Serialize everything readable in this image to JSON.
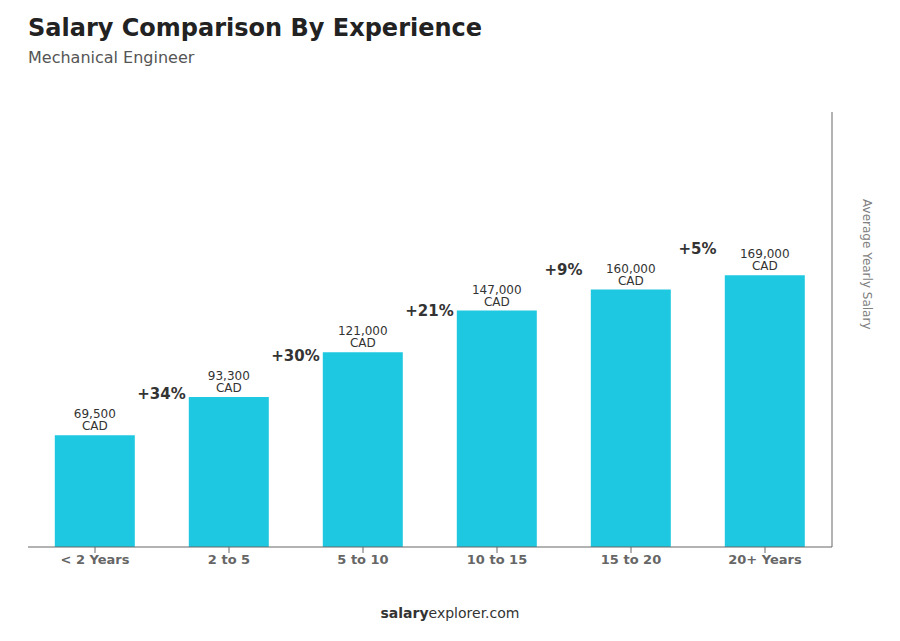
{
  "chart_data": {
    "type": "bar",
    "title": "Salary Comparison By Experience",
    "subtitle": "Mechanical Engineer",
    "ylabel": "Average Yearly Salary",
    "categories": [
      "< 2 Years",
      "2 to 5",
      "5 to 10",
      "10 to 15",
      "15 to 20",
      "20+ Years"
    ],
    "values": [
      69500,
      93300,
      121000,
      147000,
      160000,
      169000
    ],
    "value_labels": [
      "69,500 CAD",
      "93,300 CAD",
      "121,000 CAD",
      "147,000 CAD",
      "160,000 CAD",
      "169,000 CAD"
    ],
    "data_labels": true,
    "annotations": [
      "+34%",
      "+30%",
      "+21%",
      "+9%",
      "+5%"
    ],
    "footer": [
      "salary",
      "explorer.com"
    ],
    "color": "#1ec8e0",
    "ylim": [
      0,
      270400
    ],
    "tick_labels": "x",
    "grid": false
  }
}
